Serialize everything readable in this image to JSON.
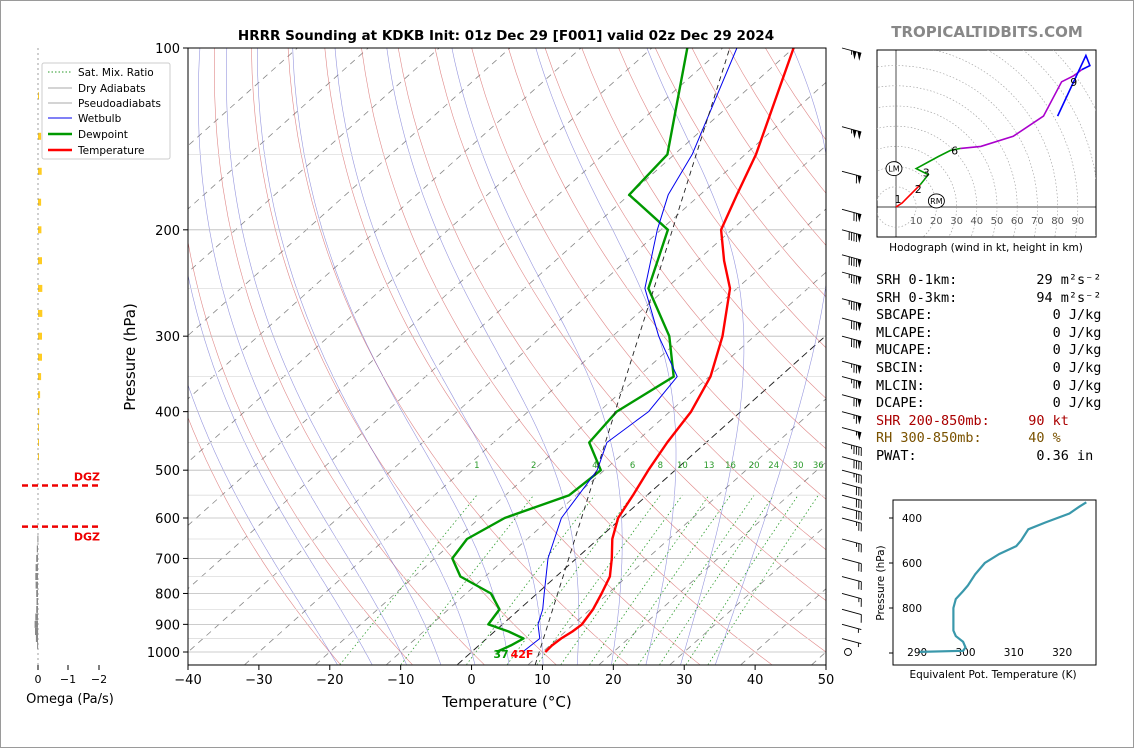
{
  "title": "HRRR Sounding at KDKB Init: 01z Dec 29 [F001] valid 02z Dec 29 2024",
  "watermark": "TROPICALTIDBITS.COM",
  "colors": {
    "temperature": "#ff0000",
    "dewpoint": "#009900",
    "wetbulb": "#0000ee",
    "dgz": "#ee0000",
    "omega": "#ffcc22",
    "omega_neg": "#888888",
    "theta_e": "#3a98ab",
    "dry_adiabat": "#d04848",
    "moist_adiabat": "#5050c8",
    "mixing_ratio": "#2a9a2a",
    "srh_color": "#000000",
    "shr_color": "#aa0000",
    "rh_color": "#7a5200"
  },
  "chart_data": [
    {
      "type": "line",
      "name": "skew-t",
      "xlabel": "Temperature (°C)",
      "ylabel": "Pressure (hPa)",
      "xlim": [
        -40,
        50
      ],
      "ylim": [
        1050,
        100
      ],
      "log_y": true,
      "x_ticks": [
        "−40",
        "−30",
        "−20",
        "−10",
        "0",
        "10",
        "20",
        "30",
        "40",
        "50"
      ],
      "y_ticks": [
        {
          "p": 100,
          "label": "100"
        },
        {
          "p": 200,
          "label": "200"
        },
        {
          "p": 300,
          "label": "300"
        },
        {
          "p": 400,
          "label": "400"
        },
        {
          "p": 500,
          "label": "500"
        },
        {
          "p": 600,
          "label": "600"
        },
        {
          "p": 700,
          "label": "700"
        },
        {
          "p": 800,
          "label": "800"
        },
        {
          "p": 900,
          "label": "900"
        },
        {
          "p": 1000,
          "label": "1000"
        }
      ],
      "legend": [
        "Sat. Mix. Ratio",
        "Dry Adiabats",
        "Pseudoadiabats",
        "Wetbulb",
        "Dewpoint",
        "Temperature"
      ],
      "legend_position": "top-left",
      "mixing_ratio_labels": [
        "1",
        "2",
        "4",
        "6",
        "8",
        "10",
        "13",
        "16",
        "20",
        "24",
        "30",
        "36"
      ],
      "surface_labels": {
        "dewpoint": "37",
        "temperature": "42F"
      },
      "series": [
        {
          "name": "Temperature",
          "points": [
            {
              "p": 1000,
              "t": 10.4
            },
            {
              "p": 975,
              "t": 10.3
            },
            {
              "p": 950,
              "t": 10.5
            },
            {
              "p": 925,
              "t": 11.0
            },
            {
              "p": 900,
              "t": 11.2
            },
            {
              "p": 850,
              "t": 10.4
            },
            {
              "p": 800,
              "t": 9.1
            },
            {
              "p": 750,
              "t": 7.6
            },
            {
              "p": 700,
              "t": 5.0
            },
            {
              "p": 650,
              "t": 2.0
            },
            {
              "p": 600,
              "t": -0.5
            },
            {
              "p": 550,
              "t": -2.0
            },
            {
              "p": 500,
              "t": -3.8
            },
            {
              "p": 450,
              "t": -5.5
            },
            {
              "p": 400,
              "t": -7.0
            },
            {
              "p": 350,
              "t": -9.8
            },
            {
              "p": 300,
              "t": -14.5
            },
            {
              "p": 250,
              "t": -21.0
            },
            {
              "p": 225,
              "t": -26.2
            },
            {
              "p": 200,
              "t": -31.5
            },
            {
              "p": 175,
              "t": -34.8
            },
            {
              "p": 150,
              "t": -38.5
            },
            {
              "p": 100,
              "t": -50.0
            }
          ]
        },
        {
          "name": "Dewpoint",
          "points": [
            {
              "p": 1000,
              "t": 3.5
            },
            {
              "p": 975,
              "t": 4.5
            },
            {
              "p": 950,
              "t": 5.2
            },
            {
              "p": 925,
              "t": 2.0
            },
            {
              "p": 900,
              "t": -2.0
            },
            {
              "p": 850,
              "t": -2.8
            },
            {
              "p": 800,
              "t": -6.5
            },
            {
              "p": 750,
              "t": -13.5
            },
            {
              "p": 700,
              "t": -17.5
            },
            {
              "p": 650,
              "t": -18.5
            },
            {
              "p": 600,
              "t": -16.5
            },
            {
              "p": 550,
              "t": -11.0
            },
            {
              "p": 500,
              "t": -10.5
            },
            {
              "p": 450,
              "t": -16.5
            },
            {
              "p": 400,
              "t": -17.5
            },
            {
              "p": 350,
              "t": -15.0
            },
            {
              "p": 300,
              "t": -22.0
            },
            {
              "p": 250,
              "t": -32.5
            },
            {
              "p": 200,
              "t": -39.0
            },
            {
              "p": 175,
              "t": -50.0
            },
            {
              "p": 150,
              "t": -51.0
            },
            {
              "p": 100,
              "t": -65.0
            }
          ]
        },
        {
          "name": "Wetbulb",
          "points": [
            {
              "p": 1000,
              "t": 7.2
            },
            {
              "p": 950,
              "t": 7.5
            },
            {
              "p": 900,
              "t": 5.0
            },
            {
              "p": 850,
              "t": 3.3
            },
            {
              "p": 800,
              "t": 1.0
            },
            {
              "p": 700,
              "t": -4.0
            },
            {
              "p": 600,
              "t": -8.5
            },
            {
              "p": 500,
              "t": -11.0
            },
            {
              "p": 450,
              "t": -14.0
            },
            {
              "p": 400,
              "t": -13.0
            },
            {
              "p": 350,
              "t": -14.5
            },
            {
              "p": 300,
              "t": -23.5
            },
            {
              "p": 250,
              "t": -33.0
            },
            {
              "p": 200,
              "t": -40.5
            },
            {
              "p": 175,
              "t": -44.5
            },
            {
              "p": 150,
              "t": -47.5
            },
            {
              "p": 100,
              "t": -58.0
            }
          ]
        }
      ],
      "dry_adiabats_theta_c": [
        -20,
        -10,
        0,
        10,
        20,
        30,
        40,
        50,
        60,
        70,
        80,
        90,
        100,
        110,
        120,
        130,
        140,
        150
      ],
      "pseudoadiabats_theta_w_c": [
        -20,
        -15,
        -10,
        -5,
        0,
        5,
        10,
        15,
        20,
        25,
        30,
        35
      ]
    },
    {
      "type": "bar",
      "name": "omega",
      "xlabel": "Omega (Pa/s)",
      "x_ticks": [
        "0",
        "−1",
        "−2"
      ],
      "dgz_label": "DGZ",
      "dgz_top_p": 530,
      "dgz_bottom_p": 620,
      "values": [
        {
          "p": 120,
          "w": -0.01
        },
        {
          "p": 140,
          "w": -0.1
        },
        {
          "p": 160,
          "w": -0.12
        },
        {
          "p": 180,
          "w": -0.1
        },
        {
          "p": 200,
          "w": -0.11
        },
        {
          "p": 225,
          "w": -0.13
        },
        {
          "p": 250,
          "w": -0.14
        },
        {
          "p": 275,
          "w": -0.14
        },
        {
          "p": 300,
          "w": -0.13
        },
        {
          "p": 325,
          "w": -0.13
        },
        {
          "p": 350,
          "w": -0.1
        },
        {
          "p": 375,
          "w": -0.07
        },
        {
          "p": 400,
          "w": -0.04
        },
        {
          "p": 425,
          "w": -0.03
        },
        {
          "p": 450,
          "w": -0.02
        },
        {
          "p": 475,
          "w": -0.01
        },
        {
          "p": 650,
          "w": 0.02
        },
        {
          "p": 675,
          "w": 0.04
        },
        {
          "p": 700,
          "w": 0.06
        },
        {
          "p": 725,
          "w": 0.08
        },
        {
          "p": 750,
          "w": 0.09
        },
        {
          "p": 775,
          "w": 0.08
        },
        {
          "p": 800,
          "w": 0.06
        },
        {
          "p": 825,
          "w": 0.05
        },
        {
          "p": 850,
          "w": 0.06
        },
        {
          "p": 875,
          "w": 0.09
        },
        {
          "p": 900,
          "w": 0.11
        },
        {
          "p": 925,
          "w": 0.1
        },
        {
          "p": 950,
          "w": 0.07
        },
        {
          "p": 975,
          "w": 0.03
        }
      ]
    },
    {
      "type": "line",
      "name": "hodograph",
      "xlabel": "Hodograph (wind in kt, height in km)",
      "ring_labels": [
        "10",
        "20",
        "30",
        "40",
        "50",
        "60",
        "70",
        "80",
        "90"
      ],
      "point_labels": [
        {
          "label": "1",
          "u": 1,
          "v": 4
        },
        {
          "label": "2",
          "u": 11,
          "v": 9
        },
        {
          "label": "3",
          "u": 15,
          "v": 17
        },
        {
          "label": "6",
          "u": 29,
          "v": 28
        },
        {
          "label": "9",
          "u": 88,
          "v": 62
        }
      ],
      "storm_motion": [
        {
          "label": "LM",
          "u": -1,
          "v": 19
        },
        {
          "label": "RM",
          "u": 20,
          "v": 3
        }
      ],
      "segments": [
        {
          "color": "#ff0000",
          "points": [
            [
              0,
              0
            ],
            [
              3,
              2
            ],
            [
              5,
              4
            ],
            [
              9,
              8
            ],
            [
              12,
              11
            ]
          ]
        },
        {
          "color": "#009900",
          "points": [
            [
              12,
              11
            ],
            [
              16,
              16
            ],
            [
              10,
              19
            ],
            [
              21,
              25
            ],
            [
              27,
              28
            ],
            [
              32,
              29
            ]
          ]
        },
        {
          "color": "#aa00cc",
          "points": [
            [
              32,
              29
            ],
            [
              42,
              30
            ],
            [
              58,
              35
            ],
            [
              73,
              45
            ],
            [
              82,
              62
            ],
            [
              88,
              65
            ],
            [
              92,
              68
            ]
          ]
        },
        {
          "color": "#0000ff",
          "points": [
            [
              92,
              68
            ],
            [
              96,
              70
            ],
            [
              94,
              75
            ],
            [
              80,
              45
            ]
          ]
        }
      ]
    },
    {
      "type": "line",
      "name": "theta-e",
      "xlabel": "Equivalent Pot. Temperature (K)",
      "ylabel": "Pressure (hPa)",
      "xlim": [
        285,
        327
      ],
      "ylim": [
        1000,
        320
      ],
      "x_ticks": [
        "290",
        "300",
        "310",
        "320"
      ],
      "y_ticks": [
        {
          "p": 400,
          "label": "400"
        },
        {
          "p": 600,
          "label": "600"
        },
        {
          "p": 800,
          "label": "800"
        }
      ],
      "points": [
        {
          "p": 995,
          "th": 290.5
        },
        {
          "p": 990,
          "th": 299.5
        },
        {
          "p": 975,
          "th": 300.0
        },
        {
          "p": 950,
          "th": 299.5
        },
        {
          "p": 925,
          "th": 298.0
        },
        {
          "p": 900,
          "th": 297.5
        },
        {
          "p": 850,
          "th": 297.5
        },
        {
          "p": 800,
          "th": 297.5
        },
        {
          "p": 760,
          "th": 298.0
        },
        {
          "p": 725,
          "th": 299.5
        },
        {
          "p": 700,
          "th": 300.5
        },
        {
          "p": 650,
          "th": 302.0
        },
        {
          "p": 600,
          "th": 304.0
        },
        {
          "p": 560,
          "th": 307.0
        },
        {
          "p": 525,
          "th": 310.5
        },
        {
          "p": 500,
          "th": 311.5
        },
        {
          "p": 450,
          "th": 313.0
        },
        {
          "p": 420,
          "th": 316.5
        },
        {
          "p": 380,
          "th": 321.5
        },
        {
          "p": 350,
          "th": 323.5
        },
        {
          "p": 330,
          "th": 325.0
        }
      ]
    }
  ],
  "stats": [
    {
      "label": "SRH 0-1km:",
      "value": "   29 m²s⁻²",
      "color": "#000000"
    },
    {
      "label": "SRH 0-3km:",
      "value": "   94 m²s⁻²",
      "color": "#000000"
    },
    {
      "label": "SBCAPE:",
      "value": "     0 J/kg",
      "color": "#000000"
    },
    {
      "label": "MLCAPE:",
      "value": "     0 J/kg",
      "color": "#000000"
    },
    {
      "label": "MUCAPE:",
      "value": "     0 J/kg",
      "color": "#000000"
    },
    {
      "label": "SBCIN:",
      "value": "     0 J/kg",
      "color": "#000000"
    },
    {
      "label": "MLCIN:",
      "value": "     0 J/kg",
      "color": "#000000"
    },
    {
      "label": "DCAPE:",
      "value": "     0 J/kg",
      "color": "#000000"
    },
    {
      "label": "SHR 200-850mb:",
      "value": "  90 kt",
      "color": "#aa0000"
    },
    {
      "label": "RH 300-850mb:",
      "value": "  40 %",
      "color": "#7a5200"
    },
    {
      "label": "PWAT:",
      "value": "   0.36 in",
      "color": "#000000"
    }
  ],
  "wind_barbs": [
    {
      "p": 100,
      "speed": 105
    },
    {
      "p": 135,
      "speed": 105
    },
    {
      "p": 160,
      "speed": 60
    },
    {
      "p": 185,
      "speed": 70
    },
    {
      "p": 200,
      "speed": 90
    },
    {
      "p": 220,
      "speed": 90
    },
    {
      "p": 235,
      "speed": 85
    },
    {
      "p": 260,
      "speed": 85
    },
    {
      "p": 280,
      "speed": 80
    },
    {
      "p": 300,
      "speed": 80
    },
    {
      "p": 330,
      "speed": 75
    },
    {
      "p": 350,
      "speed": 75
    },
    {
      "p": 375,
      "speed": 70
    },
    {
      "p": 400,
      "speed": 65
    },
    {
      "p": 425,
      "speed": 55
    },
    {
      "p": 450,
      "speed": 45
    },
    {
      "p": 475,
      "speed": 40
    },
    {
      "p": 500,
      "speed": 35
    },
    {
      "p": 525,
      "speed": 30
    },
    {
      "p": 550,
      "speed": 30
    },
    {
      "p": 575,
      "speed": 30
    },
    {
      "p": 600,
      "speed": 25
    },
    {
      "p": 650,
      "speed": 25
    },
    {
      "p": 700,
      "speed": 20
    },
    {
      "p": 750,
      "speed": 20
    },
    {
      "p": 800,
      "speed": 15
    },
    {
      "p": 850,
      "speed": 10
    },
    {
      "p": 900,
      "speed": 5
    },
    {
      "p": 950,
      "speed": 5
    },
    {
      "p": 1000,
      "speed": 0
    }
  ]
}
